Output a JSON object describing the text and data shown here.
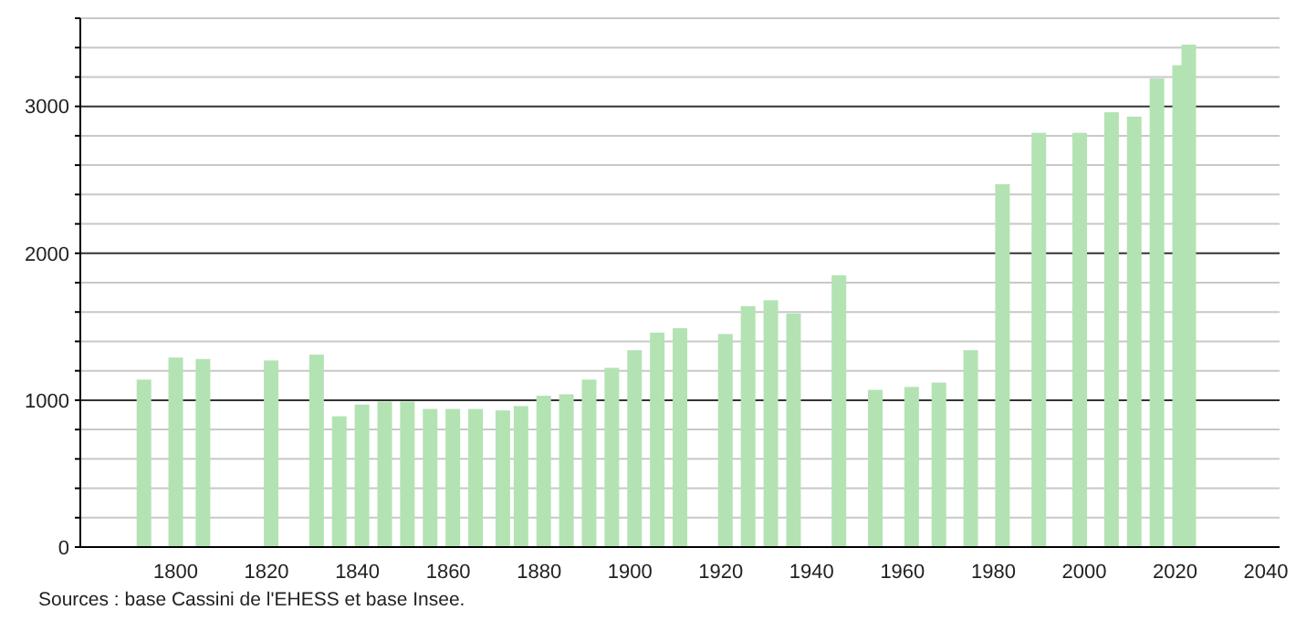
{
  "chart_data": {
    "type": "bar",
    "x": [
      1793,
      1800,
      1806,
      1821,
      1831,
      1836,
      1841,
      1846,
      1851,
      1856,
      1861,
      1866,
      1872,
      1876,
      1881,
      1886,
      1891,
      1896,
      1901,
      1906,
      1911,
      1921,
      1926,
      1931,
      1936,
      1946,
      1954,
      1962,
      1968,
      1975,
      1982,
      1990,
      1999,
      2006,
      2011,
      2016,
      2021,
      2023
    ],
    "values": [
      1140,
      1290,
      1280,
      1270,
      1310,
      890,
      970,
      990,
      990,
      940,
      940,
      940,
      930,
      960,
      1030,
      1040,
      1140,
      1220,
      1340,
      1460,
      1490,
      1450,
      1640,
      1680,
      1590,
      1850,
      1070,
      1090,
      1120,
      1340,
      2470,
      2820,
      2820,
      2960,
      2930,
      3190,
      3280,
      3420
    ],
    "color": "#b3e3b3",
    "xlim": [
      1779,
      2043
    ],
    "xticks": [
      1800,
      1820,
      1840,
      1860,
      1880,
      1900,
      1920,
      1940,
      1960,
      1980,
      2000,
      2020,
      2040
    ],
    "ylim": [
      0,
      3600
    ],
    "yticks": [
      0,
      {
        "value": 200,
        "label": null
      },
      {
        "value": 400,
        "label": null
      },
      {
        "value": 600,
        "label": null
      },
      {
        "value": 800,
        "label": null
      },
      1000,
      {
        "value": 1200,
        "label": null
      },
      {
        "value": 1400,
        "label": null
      },
      {
        "value": 1600,
        "label": null
      },
      {
        "value": 1800,
        "label": null
      },
      2000,
      {
        "value": 2200,
        "label": null
      },
      {
        "value": 2400,
        "label": null
      },
      {
        "value": 2600,
        "label": null
      },
      {
        "value": 2800,
        "label": null
      },
      3000,
      {
        "value": 3200,
        "label": null
      },
      {
        "value": 3400,
        "label": null
      },
      {
        "value": 3600,
        "label": null
      }
    ],
    "grid": "y",
    "annotations": [
      "Sources : base Cassini de l'EHESS et base Insee."
    ]
  }
}
